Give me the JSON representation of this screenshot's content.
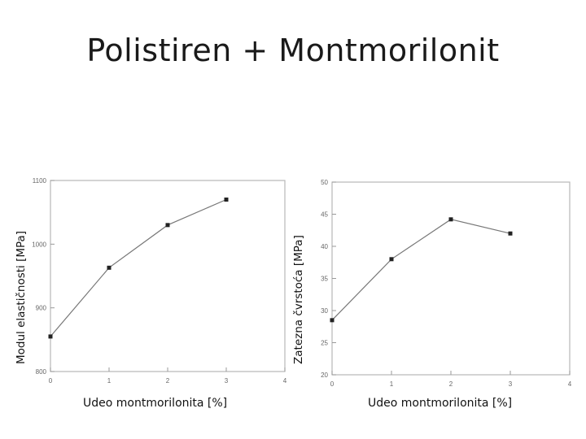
{
  "page": {
    "title": "Polistiren + Montmorilonit"
  },
  "chart_data": [
    {
      "type": "line",
      "xlabel": "Udeo montmorilonita [%]",
      "ylabel": "Modul elastičnosti [MPa]",
      "xlim": [
        0,
        4
      ],
      "ylim": [
        800,
        1100
      ],
      "xticks": [
        0,
        1,
        2,
        3,
        4
      ],
      "yticks": [
        800,
        900,
        1000,
        1100
      ],
      "grid": false,
      "series": [
        {
          "x": [
            0,
            1,
            2,
            3
          ],
          "y": [
            855,
            963,
            1030,
            1070
          ]
        }
      ],
      "color": "#777777"
    },
    {
      "type": "line",
      "xlabel": "Udeo montmorilonita [%]",
      "ylabel": "Zatezna čvrstoća [MPa]",
      "xlim": [
        0,
        4
      ],
      "ylim": [
        20,
        50
      ],
      "xticks": [
        0,
        1,
        2,
        3,
        4
      ],
      "yticks": [
        20,
        25,
        30,
        35,
        40,
        45,
        50
      ],
      "grid": false,
      "series": [
        {
          "x": [
            0,
            1,
            2,
            3
          ],
          "y": [
            28.5,
            38,
            44.2,
            42
          ]
        }
      ],
      "color": "#777777"
    }
  ]
}
